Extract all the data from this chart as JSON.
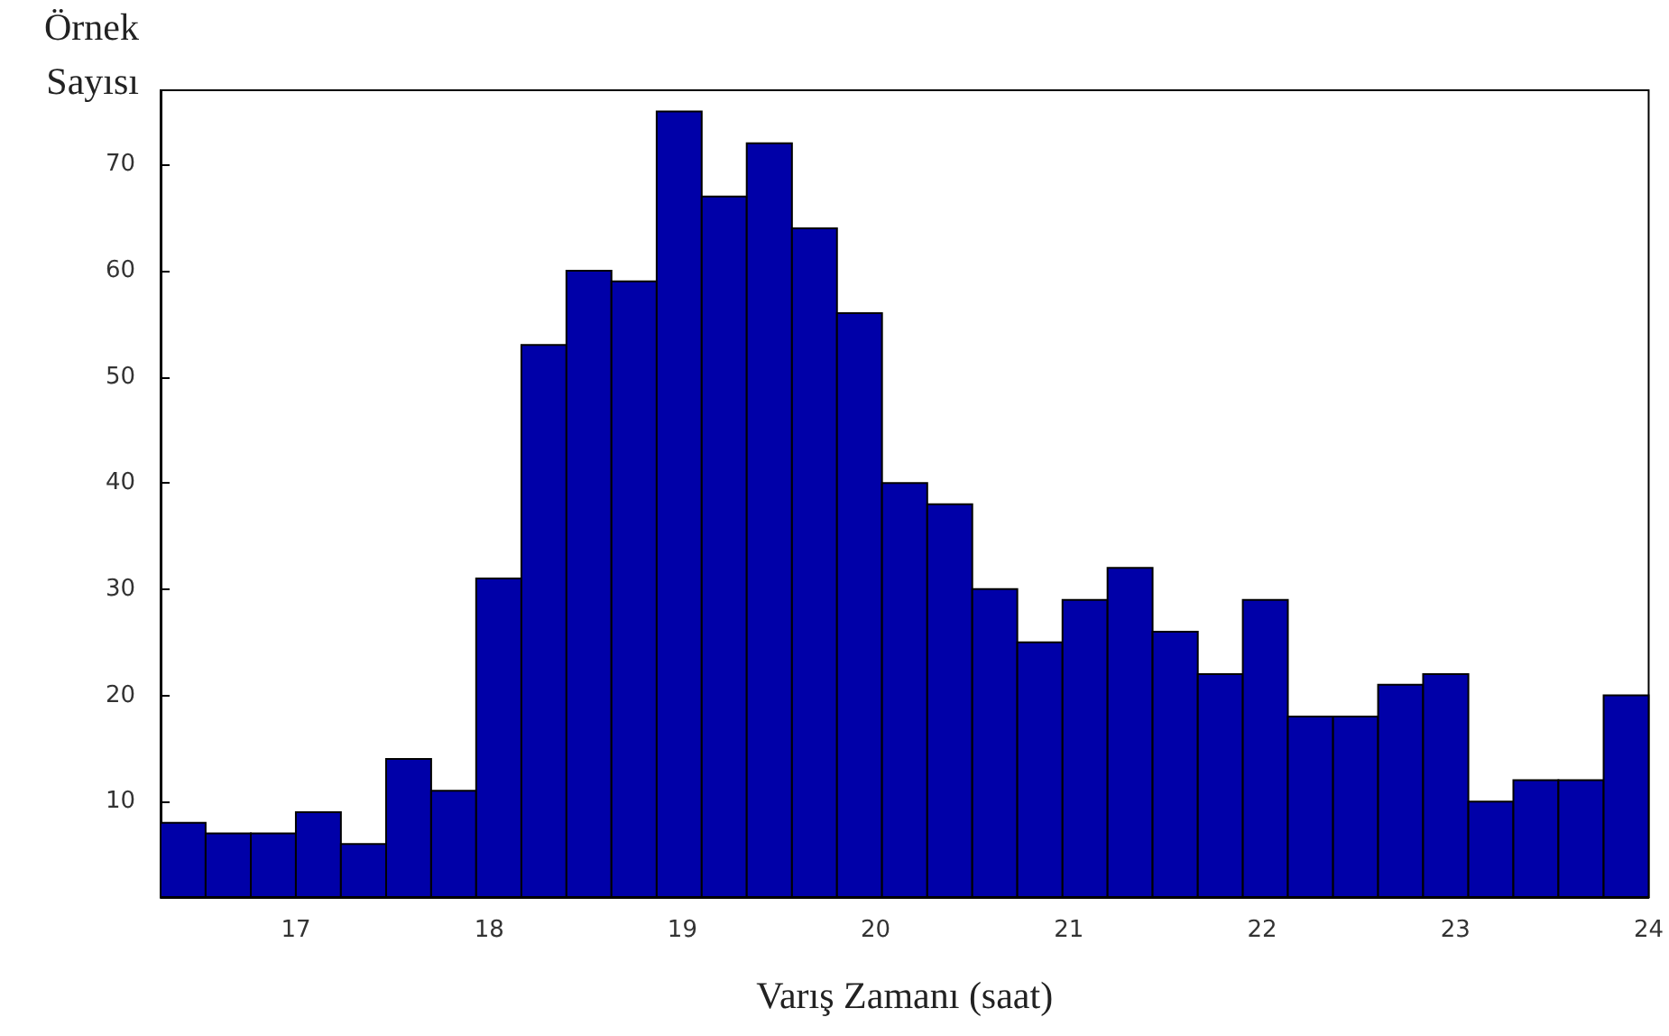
{
  "chart_data": {
    "type": "histogram",
    "xlabel": "Varış Zamanı (saat)",
    "ylabel": "Örnek Sayısı",
    "bins": [
      16.3,
      16.533,
      16.767,
      17.0,
      17.233,
      17.467,
      17.7,
      17.933,
      18.167,
      18.4,
      18.633,
      18.867,
      19.1,
      19.333,
      19.567,
      19.8,
      20.033,
      20.267,
      20.5,
      20.733,
      20.967,
      21.2,
      21.433,
      21.667,
      21.9,
      22.133,
      22.367,
      22.6,
      22.833,
      23.067,
      23.3,
      23.533,
      23.767,
      24.0
    ],
    "values": [
      8,
      7,
      7,
      9,
      6,
      14,
      11,
      31,
      53,
      60,
      59,
      75,
      67,
      72,
      64,
      56,
      40,
      38,
      30,
      25,
      29,
      32,
      26,
      22,
      29,
      18,
      18,
      21,
      22,
      10,
      12,
      12,
      20
    ],
    "color": "#0000a8",
    "xlim": [
      16.3,
      24
    ],
    "xticks": [
      17,
      18,
      19,
      20,
      21,
      22,
      23,
      24
    ],
    "ylim": [
      1,
      77
    ],
    "yticks": [
      10,
      20,
      30,
      40,
      50,
      60,
      70
    ],
    "grid": false
  }
}
